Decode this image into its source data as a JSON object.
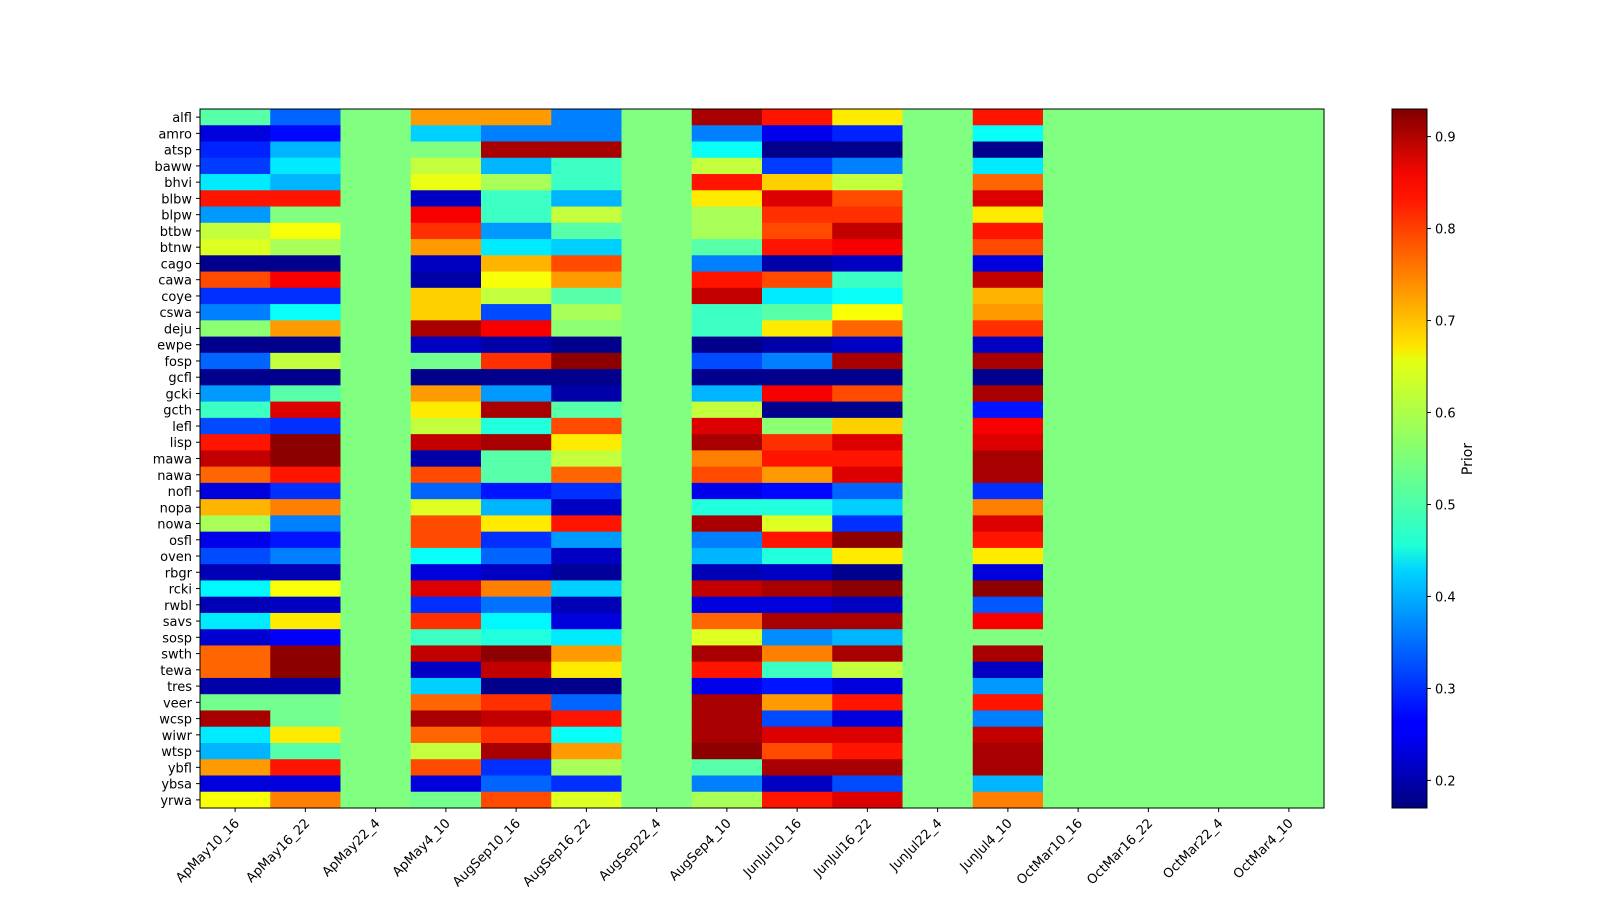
{
  "chart_data": {
    "type": "heatmap",
    "title": "",
    "xlabel": "",
    "ylabel": "",
    "colormap": "jet",
    "x_categories": [
      "ApMay10_16",
      "ApMay16_22",
      "ApMay22_4",
      "ApMay4_10",
      "AugSep10_16",
      "AugSep16_22",
      "AugSep22_4",
      "AugSep4_10",
      "JunJul10_16",
      "JunJul16_22",
      "JunJul22_4",
      "JunJul4_10",
      "OctMar10_16",
      "OctMar16_22",
      "OctMar22_4",
      "OctMar4_10"
    ],
    "y_categories": [
      "alfl",
      "amro",
      "atsp",
      "baww",
      "bhvi",
      "blbw",
      "blpw",
      "btbw",
      "btnw",
      "cago",
      "cawa",
      "coye",
      "cswa",
      "deju",
      "ewpe",
      "fosp",
      "gcfl",
      "gcki",
      "gcth",
      "lefl",
      "lisp",
      "mawa",
      "nawa",
      "nofl",
      "nopa",
      "nowa",
      "osfl",
      "oven",
      "rbgr",
      "rcki",
      "rwbl",
      "savs",
      "sosp",
      "swth",
      "tewa",
      "tres",
      "veer",
      "wcsp",
      "wiwr",
      "wtsp",
      "ybfl",
      "ybsa",
      "yrwa"
    ],
    "values": [
      [
        0.52,
        0.34,
        0.55,
        0.72,
        0.72,
        0.36,
        0.55,
        0.9,
        0.82,
        0.66,
        0.55,
        0.82,
        0.55,
        0.55,
        0.55,
        0.55
      ],
      [
        0.24,
        0.27,
        0.55,
        0.42,
        0.36,
        0.36,
        0.55,
        0.36,
        0.25,
        0.29,
        0.55,
        0.46,
        0.55,
        0.55,
        0.55,
        0.55
      ],
      [
        0.29,
        0.4,
        0.55,
        0.55,
        0.9,
        0.9,
        0.55,
        0.46,
        0.18,
        0.18,
        0.55,
        0.18,
        0.55,
        0.55,
        0.55,
        0.55
      ],
      [
        0.31,
        0.44,
        0.55,
        0.6,
        0.4,
        0.5,
        0.55,
        0.6,
        0.31,
        0.36,
        0.55,
        0.44,
        0.55,
        0.55,
        0.55,
        0.55
      ],
      [
        0.44,
        0.4,
        0.55,
        0.63,
        0.58,
        0.5,
        0.55,
        0.82,
        0.68,
        0.6,
        0.55,
        0.76,
        0.55,
        0.55,
        0.55,
        0.55
      ],
      [
        0.82,
        0.82,
        0.55,
        0.22,
        0.5,
        0.4,
        0.55,
        0.66,
        0.86,
        0.78,
        0.55,
        0.86,
        0.55,
        0.55,
        0.55,
        0.55
      ],
      [
        0.38,
        0.55,
        0.55,
        0.84,
        0.5,
        0.6,
        0.55,
        0.58,
        0.8,
        0.8,
        0.55,
        0.66,
        0.55,
        0.55,
        0.55,
        0.55
      ],
      [
        0.6,
        0.64,
        0.55,
        0.8,
        0.38,
        0.52,
        0.55,
        0.58,
        0.78,
        0.88,
        0.55,
        0.82,
        0.55,
        0.55,
        0.55,
        0.55
      ],
      [
        0.62,
        0.58,
        0.55,
        0.72,
        0.44,
        0.42,
        0.55,
        0.52,
        0.82,
        0.84,
        0.55,
        0.78,
        0.55,
        0.55,
        0.55,
        0.55
      ],
      [
        0.18,
        0.18,
        0.55,
        0.22,
        0.7,
        0.78,
        0.55,
        0.36,
        0.2,
        0.22,
        0.55,
        0.24,
        0.55,
        0.55,
        0.55,
        0.55
      ],
      [
        0.78,
        0.84,
        0.55,
        0.2,
        0.64,
        0.72,
        0.55,
        0.82,
        0.78,
        0.5,
        0.55,
        0.88,
        0.55,
        0.55,
        0.55,
        0.55
      ],
      [
        0.3,
        0.3,
        0.55,
        0.68,
        0.6,
        0.52,
        0.55,
        0.88,
        0.44,
        0.46,
        0.55,
        0.7,
        0.55,
        0.55,
        0.55,
        0.55
      ],
      [
        0.36,
        0.46,
        0.55,
        0.68,
        0.32,
        0.58,
        0.55,
        0.5,
        0.52,
        0.64,
        0.55,
        0.72,
        0.55,
        0.55,
        0.55,
        0.55
      ],
      [
        0.56,
        0.72,
        0.55,
        0.9,
        0.84,
        0.56,
        0.55,
        0.5,
        0.66,
        0.76,
        0.55,
        0.8,
        0.55,
        0.55,
        0.55,
        0.55
      ],
      [
        0.18,
        0.18,
        0.55,
        0.22,
        0.2,
        0.18,
        0.55,
        0.18,
        0.2,
        0.22,
        0.55,
        0.22,
        0.55,
        0.55,
        0.55,
        0.55
      ],
      [
        0.34,
        0.6,
        0.55,
        0.54,
        0.8,
        0.92,
        0.55,
        0.32,
        0.36,
        0.9,
        0.55,
        0.9,
        0.55,
        0.55,
        0.55,
        0.55
      ],
      [
        0.18,
        0.18,
        0.55,
        0.18,
        0.18,
        0.18,
        0.55,
        0.18,
        0.18,
        0.18,
        0.55,
        0.18,
        0.55,
        0.55,
        0.55,
        0.55
      ],
      [
        0.38,
        0.52,
        0.55,
        0.72,
        0.38,
        0.2,
        0.55,
        0.4,
        0.84,
        0.78,
        0.55,
        0.9,
        0.55,
        0.55,
        0.55,
        0.55
      ],
      [
        0.5,
        0.86,
        0.55,
        0.66,
        0.9,
        0.52,
        0.55,
        0.6,
        0.18,
        0.18,
        0.55,
        0.28,
        0.55,
        0.55,
        0.55,
        0.55
      ],
      [
        0.32,
        0.3,
        0.55,
        0.6,
        0.48,
        0.78,
        0.55,
        0.86,
        0.56,
        0.68,
        0.55,
        0.84,
        0.55,
        0.55,
        0.55,
        0.55
      ],
      [
        0.82,
        0.92,
        0.55,
        0.88,
        0.9,
        0.66,
        0.55,
        0.9,
        0.8,
        0.86,
        0.55,
        0.86,
        0.55,
        0.55,
        0.55,
        0.55
      ],
      [
        0.88,
        0.92,
        0.55,
        0.2,
        0.52,
        0.6,
        0.55,
        0.74,
        0.82,
        0.82,
        0.55,
        0.9,
        0.55,
        0.55,
        0.55,
        0.55
      ],
      [
        0.76,
        0.82,
        0.55,
        0.78,
        0.52,
        0.76,
        0.55,
        0.78,
        0.72,
        0.86,
        0.55,
        0.9,
        0.55,
        0.55,
        0.55,
        0.55
      ],
      [
        0.24,
        0.3,
        0.55,
        0.34,
        0.28,
        0.3,
        0.55,
        0.25,
        0.27,
        0.34,
        0.55,
        0.3,
        0.55,
        0.55,
        0.55,
        0.55
      ],
      [
        0.7,
        0.74,
        0.55,
        0.62,
        0.4,
        0.22,
        0.55,
        0.48,
        0.48,
        0.42,
        0.55,
        0.74,
        0.55,
        0.55,
        0.55,
        0.55
      ],
      [
        0.58,
        0.36,
        0.55,
        0.78,
        0.66,
        0.82,
        0.55,
        0.9,
        0.62,
        0.3,
        0.55,
        0.86,
        0.55,
        0.55,
        0.55,
        0.55
      ],
      [
        0.25,
        0.28,
        0.55,
        0.78,
        0.3,
        0.38,
        0.55,
        0.36,
        0.82,
        0.92,
        0.55,
        0.82,
        0.55,
        0.55,
        0.55,
        0.55
      ],
      [
        0.32,
        0.36,
        0.55,
        0.46,
        0.34,
        0.22,
        0.55,
        0.4,
        0.48,
        0.66,
        0.55,
        0.66,
        0.55,
        0.55,
        0.55,
        0.55
      ],
      [
        0.21,
        0.21,
        0.55,
        0.24,
        0.22,
        0.19,
        0.55,
        0.21,
        0.22,
        0.18,
        0.55,
        0.24,
        0.55,
        0.55,
        0.55,
        0.55
      ],
      [
        0.45,
        0.64,
        0.55,
        0.86,
        0.74,
        0.42,
        0.55,
        0.88,
        0.9,
        0.92,
        0.55,
        0.92,
        0.55,
        0.55,
        0.55,
        0.55
      ],
      [
        0.21,
        0.22,
        0.55,
        0.3,
        0.35,
        0.21,
        0.55,
        0.24,
        0.24,
        0.22,
        0.55,
        0.33,
        0.55,
        0.55,
        0.55,
        0.55
      ],
      [
        0.44,
        0.66,
        0.55,
        0.8,
        0.45,
        0.24,
        0.55,
        0.76,
        0.9,
        0.9,
        0.55,
        0.84,
        0.55,
        0.55,
        0.55,
        0.55
      ],
      [
        0.23,
        0.26,
        0.55,
        0.5,
        0.48,
        0.44,
        0.55,
        0.62,
        0.37,
        0.4,
        0.55,
        0.55,
        0.55,
        0.55,
        0.55,
        0.55
      ],
      [
        0.76,
        0.92,
        0.55,
        0.88,
        0.92,
        0.72,
        0.55,
        0.9,
        0.74,
        0.9,
        0.55,
        0.9,
        0.55,
        0.55,
        0.55,
        0.55
      ],
      [
        0.76,
        0.92,
        0.55,
        0.22,
        0.88,
        0.66,
        0.55,
        0.82,
        0.5,
        0.6,
        0.55,
        0.22,
        0.55,
        0.55,
        0.55,
        0.55
      ],
      [
        0.2,
        0.2,
        0.55,
        0.42,
        0.18,
        0.18,
        0.55,
        0.25,
        0.28,
        0.24,
        0.55,
        0.38,
        0.55,
        0.55,
        0.55,
        0.55
      ],
      [
        0.54,
        0.54,
        0.55,
        0.76,
        0.8,
        0.34,
        0.55,
        0.9,
        0.72,
        0.82,
        0.55,
        0.82,
        0.55,
        0.55,
        0.55,
        0.55
      ],
      [
        0.9,
        0.54,
        0.55,
        0.9,
        0.88,
        0.82,
        0.55,
        0.9,
        0.32,
        0.24,
        0.55,
        0.36,
        0.55,
        0.55,
        0.55,
        0.55
      ],
      [
        0.44,
        0.66,
        0.55,
        0.76,
        0.8,
        0.46,
        0.55,
        0.9,
        0.86,
        0.86,
        0.55,
        0.88,
        0.55,
        0.55,
        0.55,
        0.55
      ],
      [
        0.4,
        0.52,
        0.55,
        0.6,
        0.9,
        0.72,
        0.55,
        0.92,
        0.78,
        0.82,
        0.55,
        0.9,
        0.55,
        0.55,
        0.55,
        0.55
      ],
      [
        0.72,
        0.82,
        0.55,
        0.78,
        0.3,
        0.58,
        0.55,
        0.52,
        0.9,
        0.9,
        0.55,
        0.9,
        0.55,
        0.55,
        0.55,
        0.55
      ],
      [
        0.24,
        0.24,
        0.55,
        0.24,
        0.34,
        0.3,
        0.55,
        0.36,
        0.22,
        0.32,
        0.55,
        0.4,
        0.55,
        0.55,
        0.55,
        0.55
      ],
      [
        0.64,
        0.74,
        0.55,
        0.54,
        0.78,
        0.62,
        0.55,
        0.58,
        0.82,
        0.86,
        0.55,
        0.74,
        0.55,
        0.55,
        0.55,
        0.55
      ]
    ],
    "colorbar": {
      "label": "Prior",
      "vmin": 0.17,
      "vmax": 0.93,
      "ticks": [
        0.2,
        0.3,
        0.4,
        0.5,
        0.6,
        0.7,
        0.8,
        0.9
      ],
      "tick_labels": [
        "0.2",
        "0.3",
        "0.4",
        "0.5",
        "0.6",
        "0.7",
        "0.8",
        "0.9"
      ]
    }
  }
}
